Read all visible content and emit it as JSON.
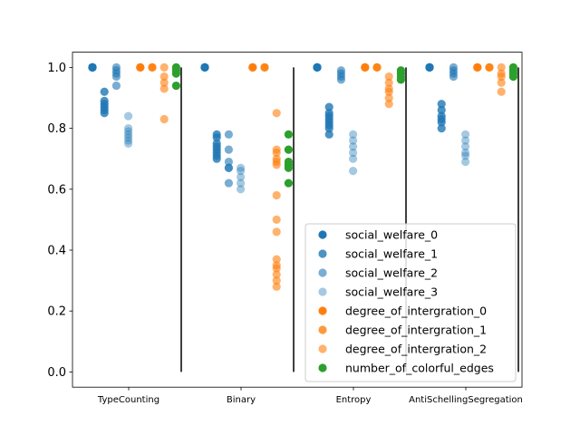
{
  "chart_data": {
    "type": "scatter",
    "title": "",
    "xlabel": "",
    "ylabel": "",
    "ylim": [
      -0.05,
      1.05
    ],
    "yticks": [
      "0.0",
      "0.2",
      "0.4",
      "0.6",
      "0.8",
      "1.0"
    ],
    "grid": false,
    "legend_position": "lower-right",
    "groups": [
      "TypeCounting",
      "Binary",
      "Entropy",
      "AntiSchellingSegregation"
    ],
    "series": [
      {
        "name": "social_welfare_0",
        "color": "#1f77b4",
        "alpha": 1.0,
        "slot": 0
      },
      {
        "name": "social_welfare_1",
        "color": "#1f77b4",
        "alpha": 0.8,
        "slot": 1
      },
      {
        "name": "social_welfare_2",
        "color": "#1f77b4",
        "alpha": 0.6,
        "slot": 2
      },
      {
        "name": "social_welfare_3",
        "color": "#1f77b4",
        "alpha": 0.4,
        "slot": 3
      },
      {
        "name": "degree_of_intergration_0",
        "color": "#ff7f0e",
        "alpha": 1.0,
        "slot": 4
      },
      {
        "name": "degree_of_intergration_1",
        "color": "#ff7f0e",
        "alpha": 0.8,
        "slot": 5
      },
      {
        "name": "degree_of_intergration_2",
        "color": "#ff7f0e",
        "alpha": 0.6,
        "slot": 6
      },
      {
        "name": "number_of_colorful_edges",
        "color": "#2ca02c",
        "alpha": 1.0,
        "slot": 7
      }
    ],
    "values": {
      "TypeCounting": {
        "social_welfare_0": [
          1.0,
          1.0,
          1.0,
          1.0,
          1.0
        ],
        "social_welfare_1": [
          0.92,
          0.89,
          0.88,
          0.87,
          0.86,
          0.85
        ],
        "social_welfare_2": [
          1.0,
          0.99,
          0.98,
          0.97,
          0.94
        ],
        "social_welfare_3": [
          0.84,
          0.8,
          0.79,
          0.78,
          0.77,
          0.76,
          0.75
        ],
        "degree_of_intergration_0": [
          1.0,
          1.0
        ],
        "degree_of_intergration_1": [
          1.0,
          1.0
        ],
        "degree_of_intergration_2": [
          1.0,
          0.97,
          0.95,
          0.93,
          0.83
        ],
        "number_of_colorful_edges": [
          1.0,
          0.99,
          0.98,
          0.94
        ]
      },
      "Binary": {
        "social_welfare_0": [
          1.0,
          1.0,
          1.0
        ],
        "social_welfare_1": [
          0.78,
          0.77,
          0.75,
          0.74,
          0.73,
          0.72,
          0.71,
          0.7
        ],
        "social_welfare_2": [
          0.78,
          0.73,
          0.69,
          0.67,
          0.67,
          0.62
        ],
        "social_welfare_3": [
          0.67,
          0.66,
          0.64,
          0.62,
          0.6
        ],
        "degree_of_intergration_0": [
          1.0,
          1.0
        ],
        "degree_of_intergration_1": [
          1.0,
          1.0
        ],
        "degree_of_intergration_2": [
          0.85,
          0.73,
          0.72,
          0.7,
          0.69,
          0.68,
          0.58,
          0.5,
          0.46,
          0.37,
          0.35,
          0.34,
          0.32,
          0.3,
          0.28
        ],
        "number_of_colorful_edges": [
          0.78,
          0.73,
          0.69,
          0.68,
          0.67,
          0.62
        ]
      },
      "Entropy": {
        "social_welfare_0": [
          1.0,
          1.0,
          1.0
        ],
        "social_welfare_1": [
          0.87,
          0.85,
          0.84,
          0.83,
          0.82,
          0.81,
          0.8,
          0.78
        ],
        "social_welfare_2": [
          0.99,
          0.98,
          0.97,
          0.96
        ],
        "social_welfare_3": [
          0.78,
          0.76,
          0.74,
          0.72,
          0.7,
          0.66
        ],
        "degree_of_intergration_0": [
          1.0,
          1.0
        ],
        "degree_of_intergration_1": [
          1.0,
          1.0
        ],
        "degree_of_intergration_2": [
          0.97,
          0.95,
          0.93,
          0.92,
          0.9,
          0.88
        ],
        "number_of_colorful_edges": [
          0.99,
          0.98,
          0.97,
          0.96
        ]
      },
      "AntiSchellingSegregation": {
        "social_welfare_0": [
          1.0,
          1.0,
          1.0
        ],
        "social_welfare_1": [
          0.88,
          0.86,
          0.84,
          0.83,
          0.82,
          0.8
        ],
        "social_welfare_2": [
          1.0,
          0.99,
          0.98,
          0.97
        ],
        "social_welfare_3": [
          0.78,
          0.76,
          0.74,
          0.72,
          0.71,
          0.69
        ],
        "degree_of_intergration_0": [
          1.0,
          1.0
        ],
        "degree_of_intergration_1": [
          1.0,
          1.0
        ],
        "degree_of_intergration_2": [
          1.0,
          0.98,
          0.97,
          0.95,
          0.92
        ],
        "number_of_colorful_edges": [
          1.0,
          0.99,
          0.98,
          0.97
        ]
      }
    },
    "separators": {
      "x_positions": [
        "between groups"
      ],
      "ymin": 0.0,
      "ymax": 1.0
    }
  }
}
